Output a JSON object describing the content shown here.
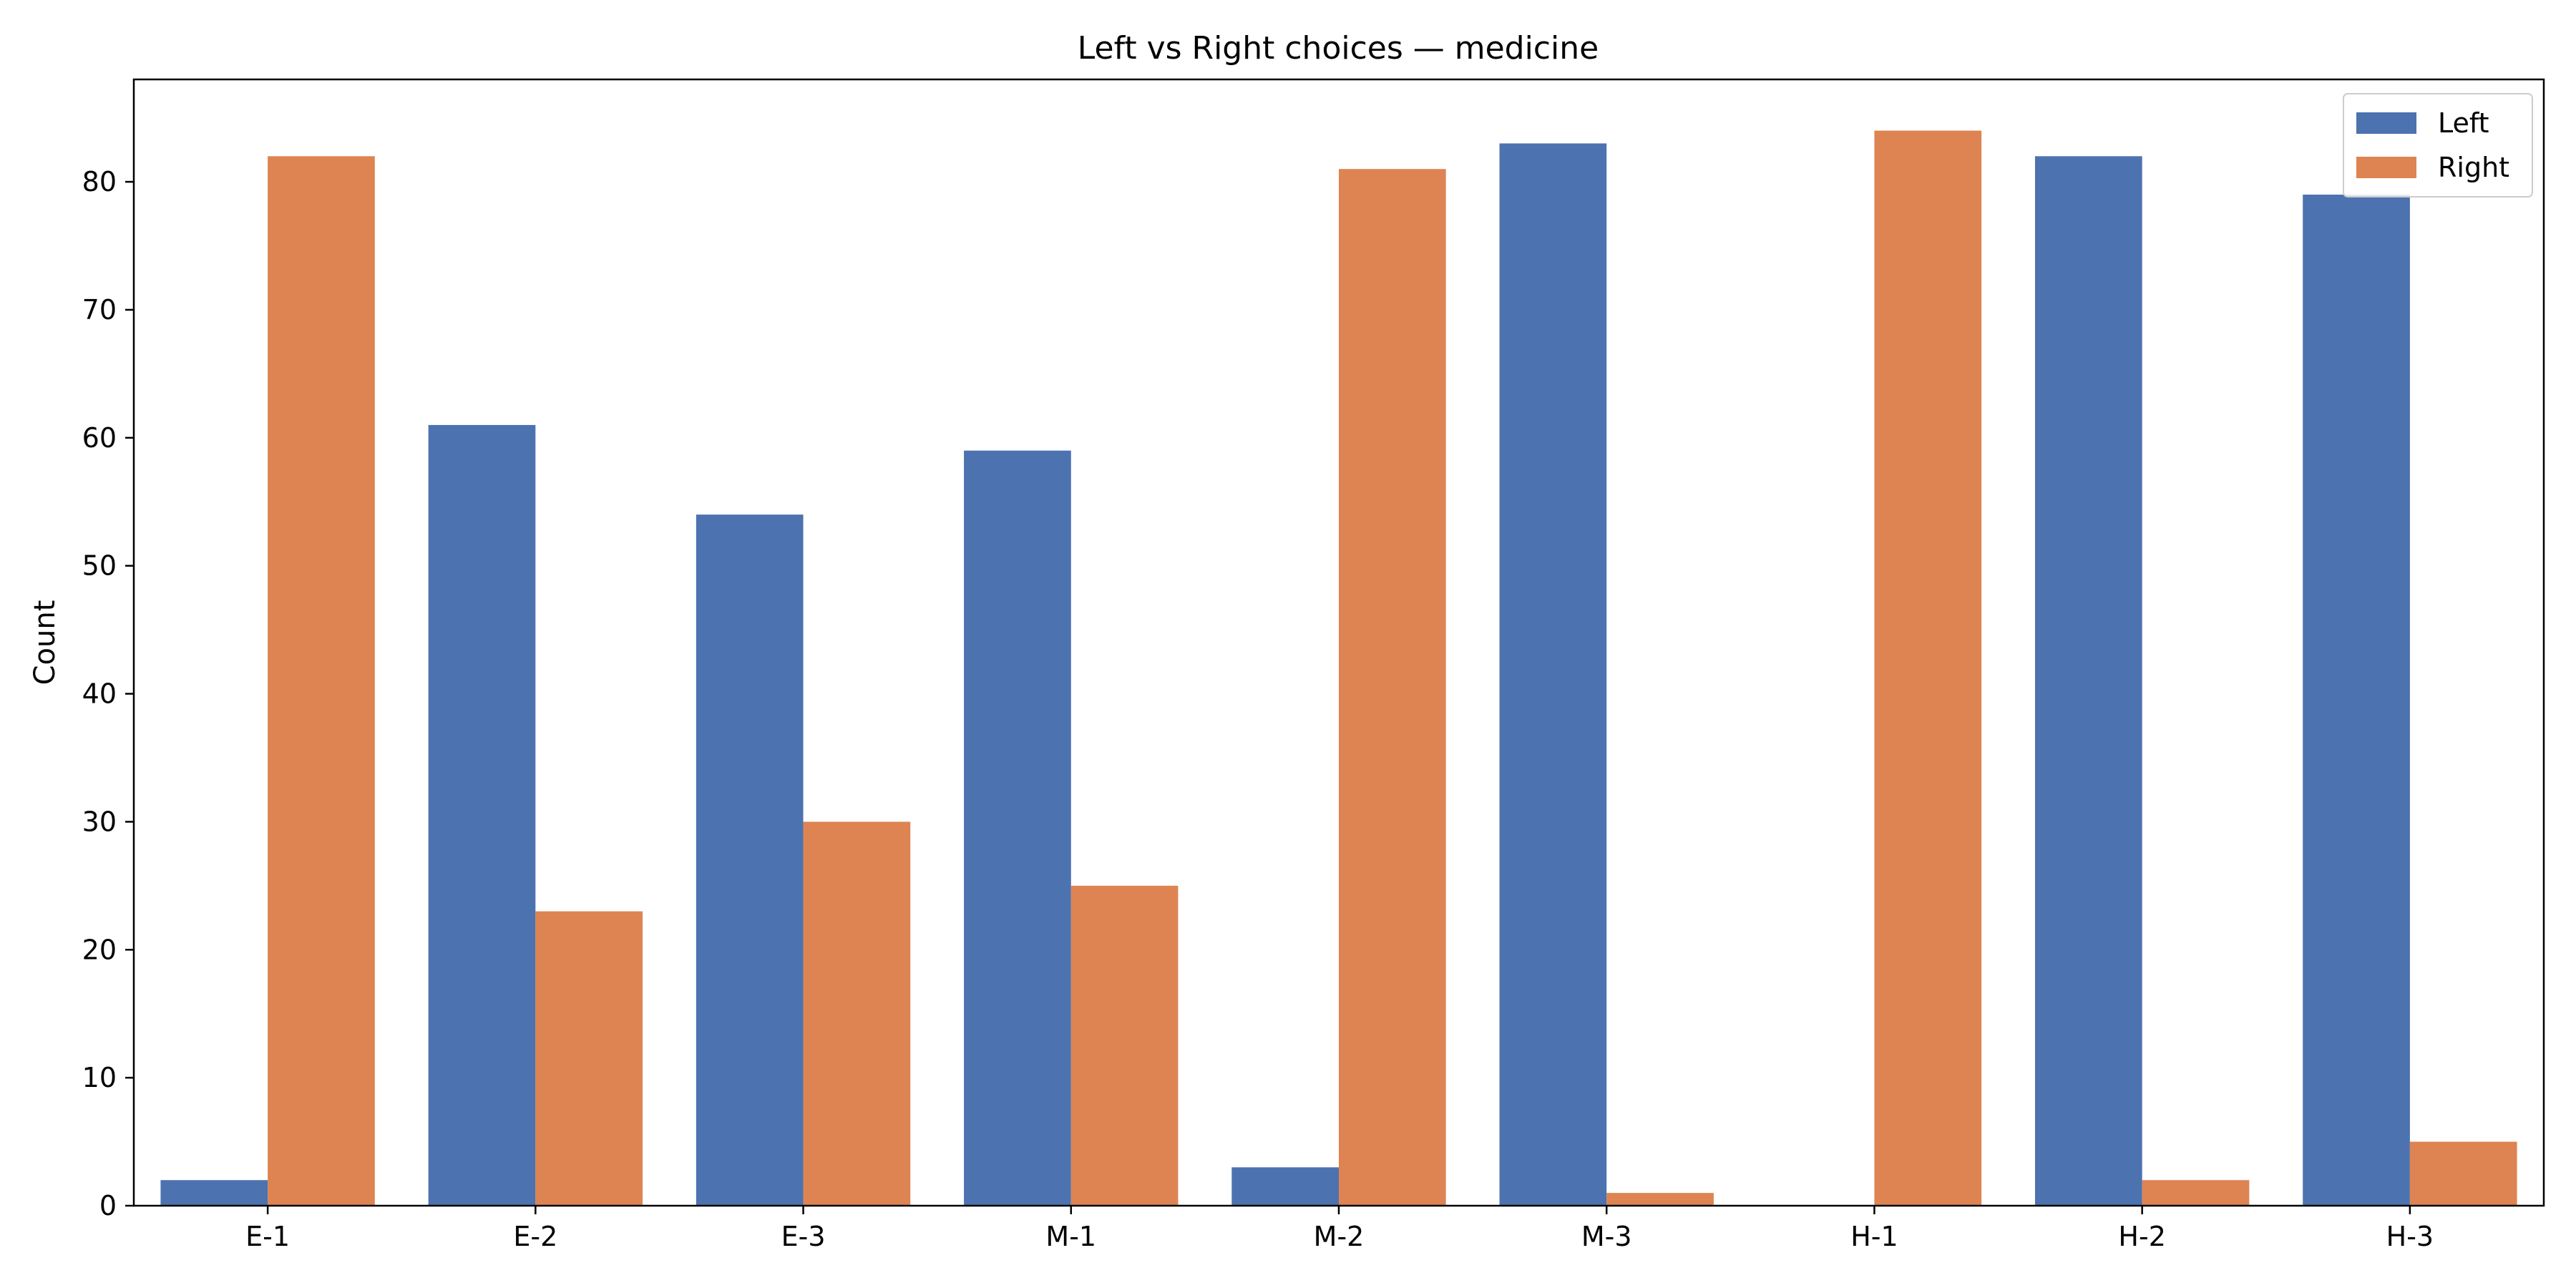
{
  "chart_data": {
    "type": "bar",
    "title": "Left vs Right choices — medicine",
    "xlabel": "",
    "ylabel": "Count",
    "categories": [
      "E-1",
      "E-2",
      "E-3",
      "M-1",
      "M-2",
      "M-3",
      "H-1",
      "H-2",
      "H-3"
    ],
    "series": [
      {
        "name": "Left",
        "color": "#4c72b0",
        "values": [
          2,
          61,
          54,
          59,
          3,
          83,
          0,
          82,
          79
        ]
      },
      {
        "name": "Right",
        "color": "#dd8452",
        "values": [
          82,
          23,
          30,
          25,
          81,
          1,
          84,
          2,
          5
        ]
      }
    ],
    "ylim": [
      0,
      88
    ],
    "yticks": [
      0,
      10,
      20,
      30,
      40,
      50,
      60,
      70,
      80
    ],
    "grid": false,
    "legend_position": "top-right"
  }
}
